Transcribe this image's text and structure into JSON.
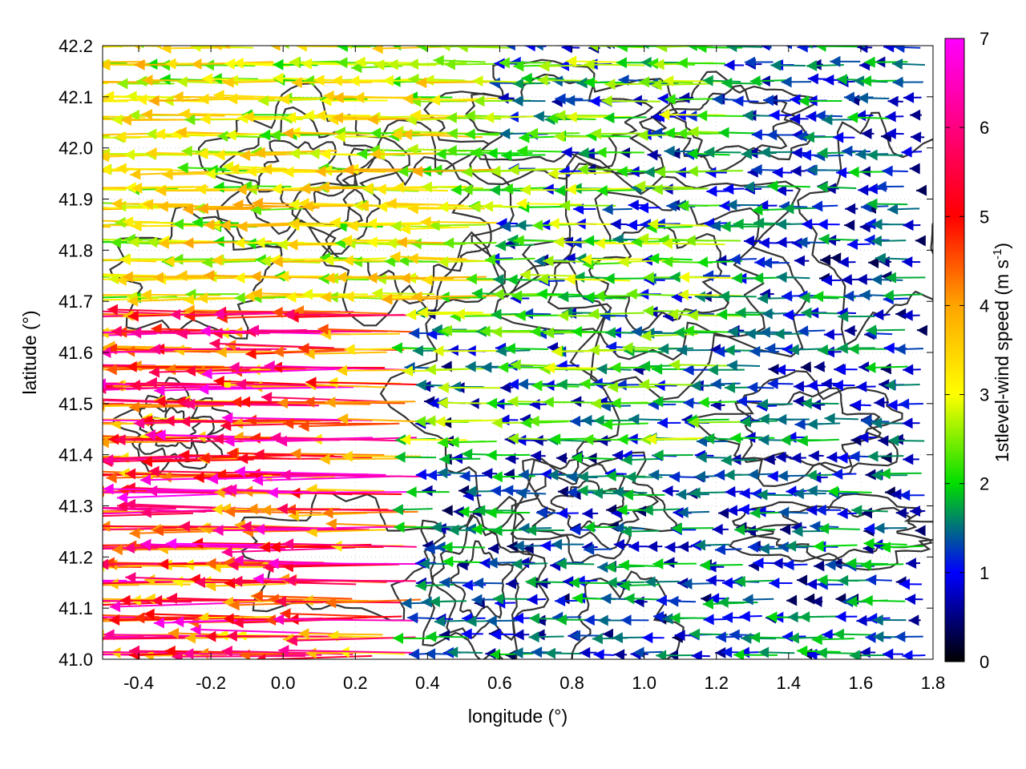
{
  "chart_data": {
    "type": "vector-field",
    "xlabel": "longitude (°)",
    "ylabel": "latitude (°)",
    "colorbar_label_main": "1stlevel-wind speed (m s",
    "colorbar_label_sup": "-1",
    "colorbar_label_end": ")",
    "xlim": [
      -0.5,
      1.8
    ],
    "ylim": [
      41.0,
      42.2
    ],
    "colorbar_range": [
      0,
      7
    ],
    "x_ticks": [
      "-0.4",
      "-0.2",
      "0.0",
      "0.2",
      "0.4",
      "0.6",
      "0.8",
      "1.0",
      "1.2",
      "1.4",
      "1.6",
      "1.8"
    ],
    "x_tick_values": [
      -0.4,
      -0.2,
      0.0,
      0.2,
      0.4,
      0.6,
      0.8,
      1.0,
      1.2,
      1.4,
      1.6,
      1.8
    ],
    "y_ticks": [
      "41.0",
      "41.1",
      "41.2",
      "41.3",
      "41.4",
      "41.5",
      "41.6",
      "41.7",
      "41.8",
      "41.9",
      "42.0",
      "42.1",
      "42.2"
    ],
    "y_tick_values": [
      41.0,
      41.1,
      41.2,
      41.3,
      41.4,
      41.5,
      41.6,
      41.7,
      41.8,
      41.9,
      42.0,
      42.1,
      42.2
    ],
    "colorbar_ticks": [
      "0",
      "1",
      "2",
      "3",
      "4",
      "5",
      "6",
      "7"
    ],
    "colorbar_tick_values": [
      0,
      1,
      2,
      3,
      4,
      5,
      6,
      7
    ],
    "colormap": [
      "#000000",
      "#0000ff",
      "#00dd00",
      "#ffff00",
      "#ffa500",
      "#ff0000",
      "#ff00ff"
    ],
    "contour_color": "#333333",
    "grid": "dotted",
    "legend": "colorbar right",
    "wind_field_regions": [
      {
        "lon": [
          -0.5,
          0.4
        ],
        "lat": [
          41.0,
          41.7
        ],
        "speed_m_s": [
          3,
          7
        ],
        "direction": "westward"
      },
      {
        "lon": [
          -0.5,
          0.6
        ],
        "lat": [
          41.7,
          42.2
        ],
        "speed_m_s": [
          2,
          4
        ],
        "direction": "westward"
      },
      {
        "lon": [
          0.5,
          1.3
        ],
        "lat": [
          41.4,
          42.2
        ],
        "speed_m_s": [
          0.5,
          3
        ],
        "direction": "westward"
      },
      {
        "lon": [
          1.2,
          1.8
        ],
        "lat": [
          41.0,
          42.2
        ],
        "speed_m_s": [
          0.3,
          2
        ],
        "direction": "westward"
      }
    ]
  }
}
